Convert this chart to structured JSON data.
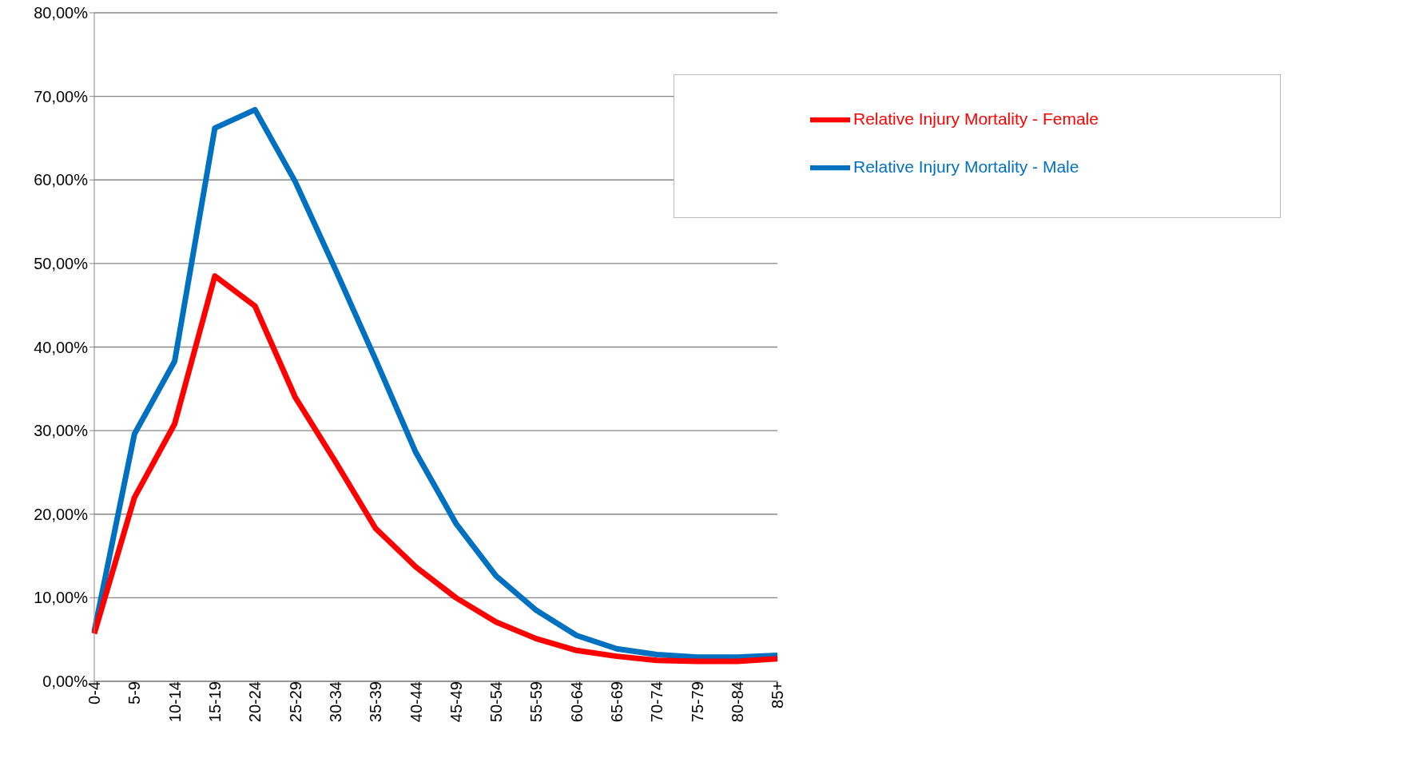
{
  "chart_data": {
    "type": "line",
    "categories": [
      "0-4",
      "5-9",
      "10-14",
      "15-19",
      "20-24",
      "25-29",
      "30-34",
      "35-39",
      "40-44",
      "45-49",
      "50-54",
      "55-59",
      "60-64",
      "65-69",
      "70-74",
      "75-79",
      "80-84",
      "85+"
    ],
    "series": [
      {
        "name": "Relative Injury Mortality - Male",
        "color": "#0070c0",
        "values": [
          6.0,
          29.6,
          38.3,
          66.2,
          68.4,
          59.8,
          49.3,
          38.5,
          27.4,
          18.9,
          12.6,
          8.5,
          5.5,
          3.9,
          3.2,
          2.9,
          2.9,
          3.1
        ]
      },
      {
        "name": "Relative Injury Mortality - Female",
        "color": "#ff0000",
        "values": [
          5.7,
          22.0,
          30.8,
          48.5,
          44.9,
          34.0,
          26.3,
          18.3,
          13.7,
          10.0,
          7.1,
          5.1,
          3.7,
          3.0,
          2.5,
          2.4,
          2.4,
          2.7
        ]
      }
    ],
    "ylim": [
      0,
      80
    ],
    "yticks": [
      {
        "value": 0,
        "label": "0,00%"
      },
      {
        "value": 10,
        "label": "10,00%"
      },
      {
        "value": 20,
        "label": "20,00%"
      },
      {
        "value": 30,
        "label": "30,00%"
      },
      {
        "value": 40,
        "label": "40,00%"
      },
      {
        "value": 50,
        "label": "50,00%"
      },
      {
        "value": 60,
        "label": "60,00%"
      },
      {
        "value": 70,
        "label": "70,00%"
      },
      {
        "value": 80,
        "label": "80,00%"
      }
    ],
    "grid": "y",
    "legend": "top right"
  }
}
